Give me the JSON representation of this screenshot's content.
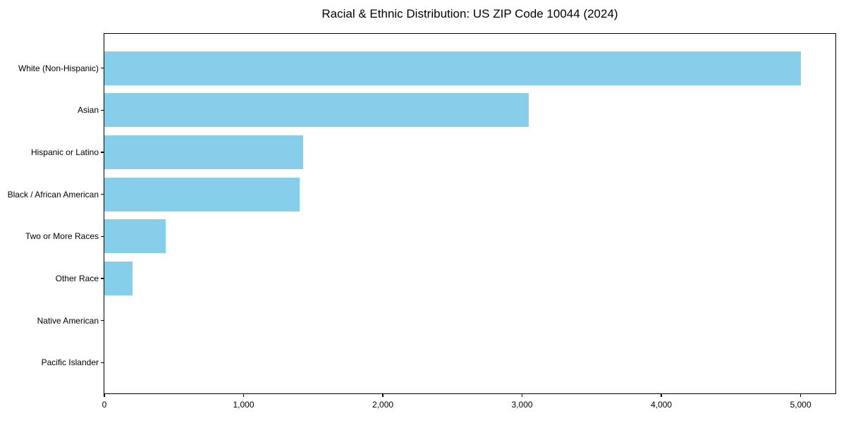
{
  "chart_data": {
    "type": "bar",
    "orientation": "horizontal",
    "title": "Racial & Ethnic Distribution: US ZIP Code 10044 (2024)",
    "categories": [
      "White (Non-Hispanic)",
      "Asian",
      "Hispanic or Latino",
      "Black / African American",
      "Two or More Races",
      "Other Race",
      "Native American",
      "Pacific Islander"
    ],
    "values": [
      5000,
      3050,
      1430,
      1400,
      440,
      200,
      0,
      0
    ],
    "xlabel": "",
    "ylabel": "",
    "xlim": [
      0,
      5250
    ],
    "x_ticks": [
      0,
      1000,
      2000,
      3000,
      4000,
      5000
    ],
    "x_tick_labels": [
      "0",
      "1,000",
      "2,000",
      "3,000",
      "4,000",
      "5,000"
    ],
    "bar_color": "#87CEEB",
    "grid": false,
    "legend": null
  }
}
